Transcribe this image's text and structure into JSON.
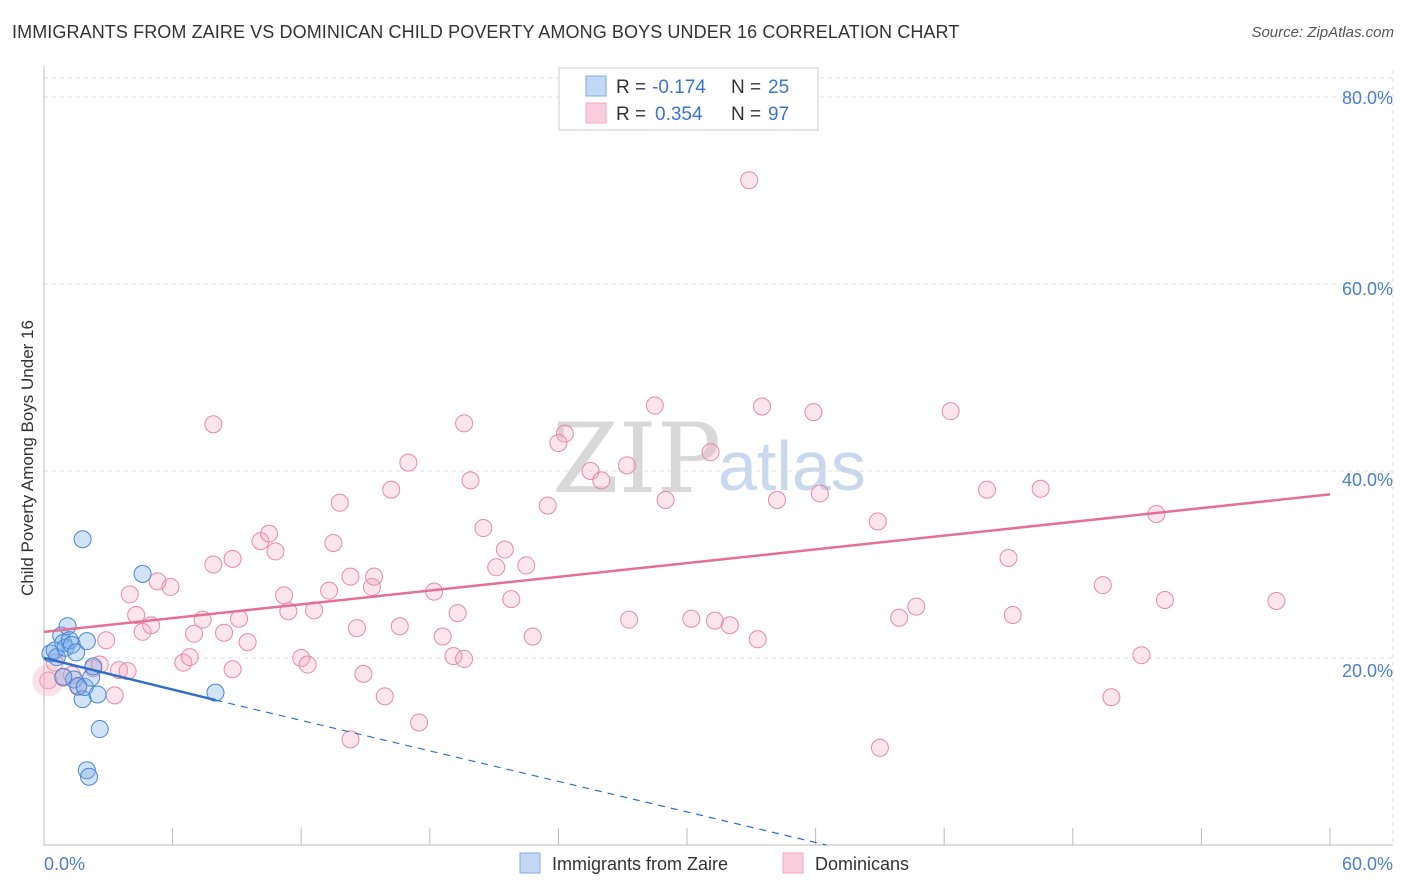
{
  "title": "IMMIGRANTS FROM ZAIRE VS DOMINICAN CHILD POVERTY AMONG BOYS UNDER 16 CORRELATION CHART",
  "source": "Source: ZipAtlas.com",
  "watermark": {
    "zip": "ZIP",
    "atlas": "atlas"
  },
  "colors": {
    "blue": "#7aaee8",
    "blue_stroke": "#4a86d4",
    "blue_line": "#2f6fc9",
    "pink": "#f4a9c0",
    "pink_stroke": "#e889a7",
    "pink_line": "#e46f98",
    "grid": "#dddddd",
    "axis_text": "#4a7fc9"
  },
  "chart_data": {
    "type": "scatter",
    "xlabel": "",
    "ylabel": "Child Poverty Among Boys Under 16",
    "xlim": [
      0,
      60
    ],
    "ylim": [
      0,
      85
    ],
    "x_tick_labels": [
      "0.0%",
      "60.0%"
    ],
    "y_ticks": [
      20,
      40,
      60,
      80
    ],
    "y_tick_labels": [
      "20.0%",
      "40.0%",
      "60.0%",
      "80.0%"
    ],
    "legend": [
      {
        "r_label": "R =",
        "r_value": "-0.174",
        "n_label": "N =",
        "n_value": "25"
      },
      {
        "r_label": "R =",
        "r_value": "0.354",
        "n_label": "N =",
        "n_value": "97"
      }
    ],
    "series": [
      {
        "name": "Immigrants from Zaire",
        "color": "#7aaee8",
        "points": [
          [
            0.3,
            20.5
          ],
          [
            0.5,
            20.8
          ],
          [
            0.6,
            20.1
          ],
          [
            0.8,
            22.4
          ],
          [
            0.9,
            21.6
          ],
          [
            1.0,
            21.1
          ],
          [
            1.1,
            23.4
          ],
          [
            1.2,
            21.9
          ],
          [
            1.3,
            21.4
          ],
          [
            1.4,
            17.7
          ],
          [
            1.5,
            20.6
          ],
          [
            1.6,
            17.0
          ],
          [
            1.8,
            15.6
          ],
          [
            1.9,
            16.9
          ],
          [
            2.0,
            21.8
          ],
          [
            2.2,
            17.9
          ],
          [
            2.3,
            19.1
          ],
          [
            2.5,
            16.1
          ],
          [
            2.6,
            12.4
          ],
          [
            1.8,
            32.7
          ],
          [
            4.6,
            29.0
          ],
          [
            2.0,
            8.0
          ],
          [
            2.1,
            7.3
          ],
          [
            8.0,
            16.3
          ],
          [
            0.9,
            18.0
          ]
        ],
        "trend": {
          "x0": 0,
          "y0": 20.0,
          "x1": 8.0,
          "y1": 15.5,
          "dash_to_x": 36.5,
          "dash_to_y": 0.0
        }
      },
      {
        "name": "Dominicans",
        "color": "#f4a9c0",
        "points": [
          [
            0.2,
            17.6
          ],
          [
            0.5,
            19.5
          ],
          [
            0.9,
            17.9
          ],
          [
            1.3,
            18.2
          ],
          [
            1.6,
            16.9
          ],
          [
            2.3,
            18.9
          ],
          [
            2.6,
            19.3
          ],
          [
            2.9,
            21.9
          ],
          [
            3.3,
            16.0
          ],
          [
            3.5,
            18.7
          ],
          [
            3.9,
            18.6
          ],
          [
            4.0,
            26.8
          ],
          [
            4.3,
            24.6
          ],
          [
            4.6,
            22.8
          ],
          [
            5.0,
            23.5
          ],
          [
            5.3,
            28.2
          ],
          [
            5.9,
            27.6
          ],
          [
            6.5,
            19.5
          ],
          [
            6.8,
            20.1
          ],
          [
            7.0,
            22.6
          ],
          [
            7.4,
            24.1
          ],
          [
            7.9,
            30.0
          ],
          [
            7.9,
            45.0
          ],
          [
            8.4,
            22.7
          ],
          [
            8.8,
            18.8
          ],
          [
            9.1,
            24.2
          ],
          [
            9.5,
            21.7
          ],
          [
            10.1,
            32.5
          ],
          [
            10.5,
            33.3
          ],
          [
            10.8,
            31.4
          ],
          [
            11.2,
            26.7
          ],
          [
            11.4,
            25.0
          ],
          [
            12.0,
            20.0
          ],
          [
            12.3,
            19.3
          ],
          [
            12.6,
            25.1
          ],
          [
            13.3,
            27.2
          ],
          [
            13.5,
            32.3
          ],
          [
            13.8,
            36.6
          ],
          [
            14.3,
            28.7
          ],
          [
            14.6,
            23.2
          ],
          [
            14.9,
            18.3
          ],
          [
            15.3,
            27.6
          ],
          [
            15.9,
            15.9
          ],
          [
            16.2,
            38.0
          ],
          [
            17.0,
            40.9
          ],
          [
            16.6,
            23.4
          ],
          [
            17.5,
            13.1
          ],
          [
            18.2,
            27.1
          ],
          [
            18.6,
            22.3
          ],
          [
            19.1,
            20.2
          ],
          [
            19.3,
            24.8
          ],
          [
            19.6,
            45.1
          ],
          [
            19.9,
            39.0
          ],
          [
            20.5,
            33.9
          ],
          [
            21.1,
            29.7
          ],
          [
            21.5,
            31.6
          ],
          [
            21.8,
            26.3
          ],
          [
            22.5,
            29.9
          ],
          [
            22.8,
            22.3
          ],
          [
            23.5,
            36.3
          ],
          [
            24.3,
            44.0
          ],
          [
            25.5,
            40.0
          ],
          [
            26.0,
            39.0
          ],
          [
            27.2,
            40.6
          ],
          [
            27.3,
            24.1
          ],
          [
            29.0,
            36.9
          ],
          [
            28.5,
            47.0
          ],
          [
            30.2,
            24.2
          ],
          [
            31.1,
            42.0
          ],
          [
            31.3,
            24.0
          ],
          [
            32.0,
            23.5
          ],
          [
            32.9,
            71.1
          ],
          [
            33.3,
            22.0
          ],
          [
            33.5,
            46.9
          ],
          [
            34.2,
            36.9
          ],
          [
            35.9,
            46.3
          ],
          [
            36.2,
            37.6
          ],
          [
            38.9,
            34.6
          ],
          [
            39.0,
            10.4
          ],
          [
            39.9,
            24.3
          ],
          [
            40.7,
            25.5
          ],
          [
            42.3,
            46.4
          ],
          [
            44.0,
            38.0
          ],
          [
            45.0,
            30.7
          ],
          [
            45.2,
            24.6
          ],
          [
            46.5,
            38.1
          ],
          [
            49.4,
            27.8
          ],
          [
            49.8,
            15.8
          ],
          [
            51.2,
            20.3
          ],
          [
            51.9,
            35.4
          ],
          [
            52.3,
            26.2
          ],
          [
            57.5,
            26.1
          ],
          [
            14.3,
            11.3
          ],
          [
            15.4,
            28.7
          ],
          [
            19.6,
            19.9
          ],
          [
            24.0,
            43.0
          ],
          [
            8.8,
            30.6
          ]
        ],
        "trend": {
          "x0": 0,
          "y0": 22.8,
          "x1": 60,
          "y1": 37.5
        }
      }
    ]
  },
  "bottom_legend": [
    {
      "label": "Immigrants from Zaire",
      "color": "#7aaee8"
    },
    {
      "label": "Dominicans",
      "color": "#f4a9c0"
    }
  ]
}
